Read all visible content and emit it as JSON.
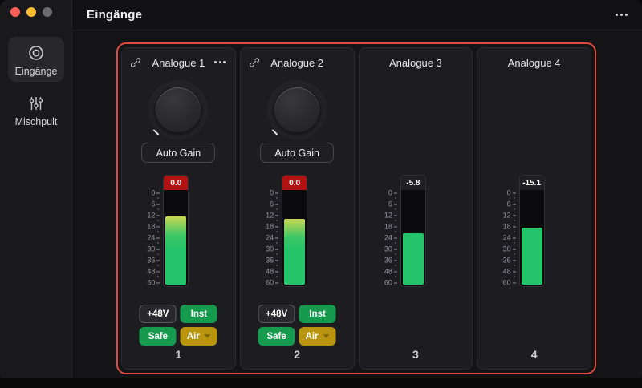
{
  "window": {
    "title": "Eingänge",
    "traffic_lights": {
      "close": "#ff5f57",
      "minimize": "#febc2e",
      "inactive": "#6b6b70"
    }
  },
  "sidebar": {
    "items": [
      {
        "label": "Eingänge",
        "icon": "inputs-icon",
        "selected": true
      },
      {
        "label": "Mischpult",
        "icon": "mixer-sliders-icon",
        "selected": false
      }
    ]
  },
  "meter_scale": {
    "major": [
      "0",
      "6",
      "12",
      "18",
      "24",
      "30",
      "36",
      "48",
      "60"
    ]
  },
  "channels": [
    {
      "name": "Analogue 1",
      "number": "1",
      "linked": true,
      "has_menu": true,
      "auto_gain_label": "Auto Gain",
      "peak": "0.0",
      "clipping": true,
      "level_percent": 71,
      "buttons": {
        "phantom": "+48V",
        "inst": "Inst",
        "safe": "Safe",
        "air": "Air"
      }
    },
    {
      "name": "Analogue 2",
      "number": "2",
      "linked": true,
      "has_menu": false,
      "auto_gain_label": "Auto Gain",
      "peak": "0.0",
      "clipping": true,
      "level_percent": 68,
      "buttons": {
        "phantom": "+48V",
        "inst": "Inst",
        "safe": "Safe",
        "air": "Air"
      }
    },
    {
      "name": "Analogue 3",
      "number": "3",
      "linked": false,
      "peak": "-5.8",
      "clipping": false,
      "level_percent": 53
    },
    {
      "name": "Analogue 4",
      "number": "4",
      "linked": false,
      "peak": "-15.1",
      "clipping": false,
      "level_percent": 59
    }
  ],
  "colors": {
    "accent_red": "#e04a3d",
    "green": "#169a4e",
    "gold": "#b8940f",
    "meter_green": "#25c36a",
    "clip_red": "#b31212"
  }
}
